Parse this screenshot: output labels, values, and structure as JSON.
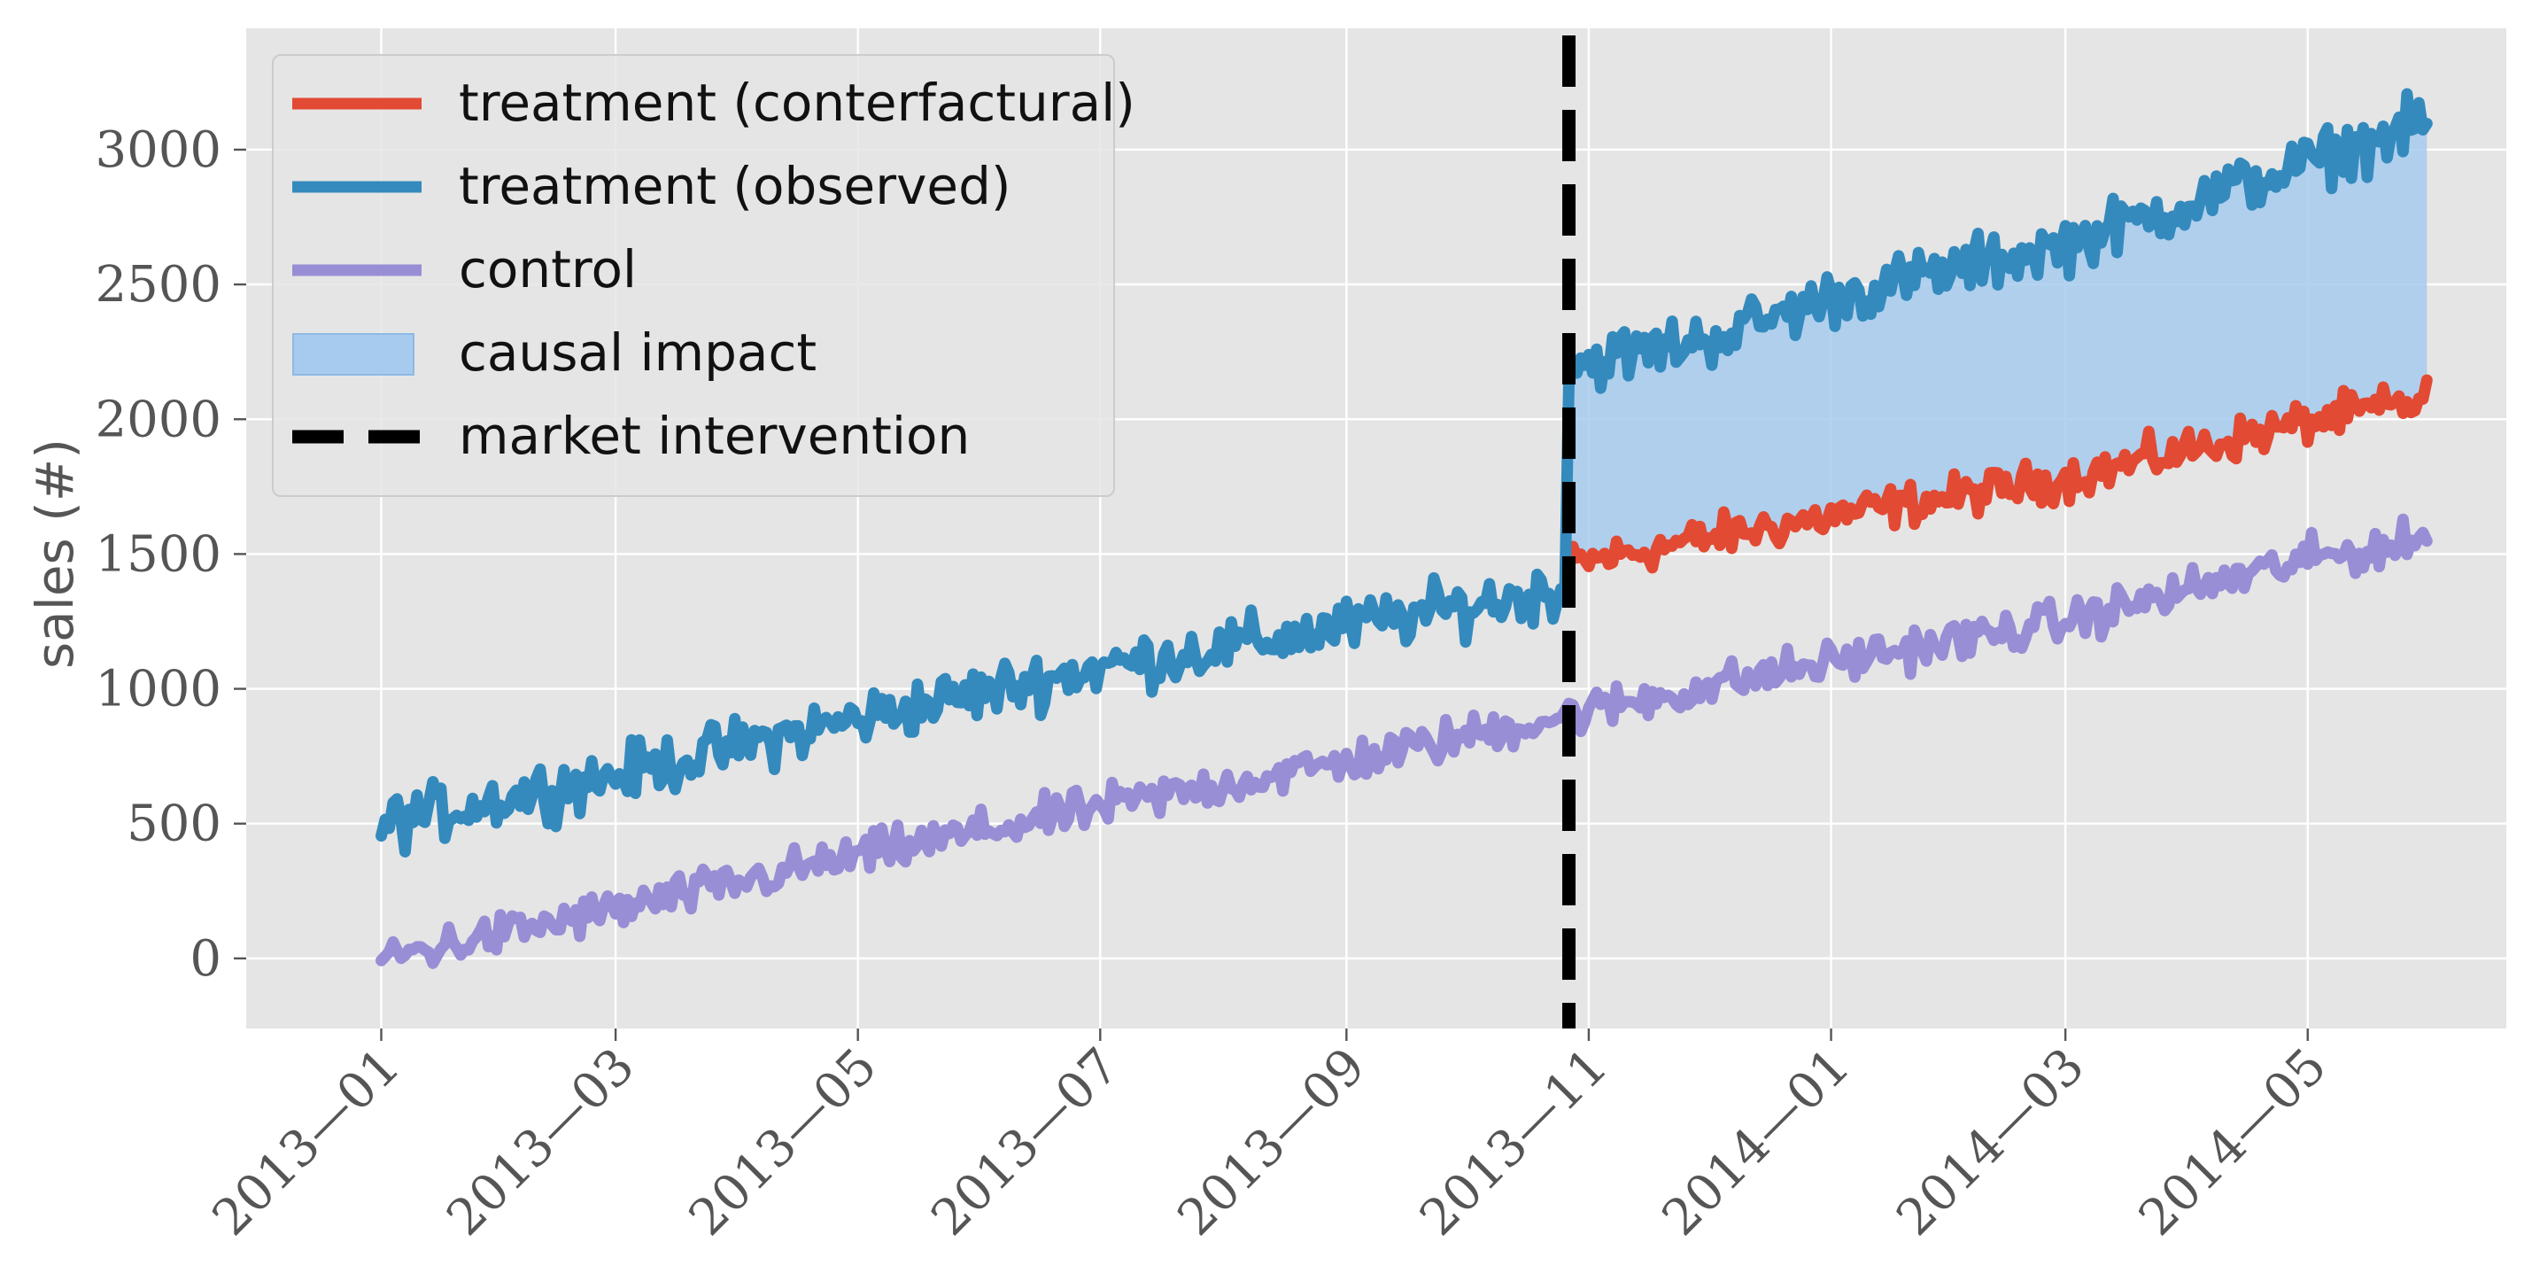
{
  "chart_data": {
    "type": "line",
    "title": "",
    "xlabel": "",
    "ylabel": "sales (#)",
    "x_range": [
      "2012-11-28",
      "2014-06-20"
    ],
    "ylim": [
      -260,
      3450
    ],
    "y_ticks": [
      0,
      500,
      1000,
      1500,
      2000,
      2500,
      3000
    ],
    "y_tick_labels": [
      "0",
      "500",
      "1000",
      "1500",
      "2000",
      "2500",
      "3000"
    ],
    "x_ticks": [
      "2013-01-01",
      "2013-03-01",
      "2013-05-01",
      "2013-07-01",
      "2013-09-01",
      "2013-11-01",
      "2014-01-01",
      "2014-03-01",
      "2014-05-01"
    ],
    "x_tick_labels": [
      "2013—01",
      "2013—03",
      "2013—05",
      "2013—07",
      "2013—09",
      "2013—11",
      "2014—01",
      "2014—03",
      "2014—05"
    ],
    "grid": true,
    "legend_position": "top-left",
    "series_start": "2013-01-01",
    "series_end": "2014-05-31",
    "intervention_date": "2013-10-27",
    "series": [
      {
        "name": "treatment (conterfactural)",
        "color": "#E24A33",
        "range": [
          "2013-10-27",
          "2014-05-31"
        ],
        "trend": [
          [
            "2013-10-27",
            1460
          ],
          [
            "2013-12-01",
            1560
          ],
          [
            "2014-01-01",
            1640
          ],
          [
            "2014-03-01",
            1780
          ],
          [
            "2014-05-01",
            1990
          ],
          [
            "2014-05-31",
            2070
          ]
        ]
      },
      {
        "name": "treatment (observed)",
        "color": "#348ABD",
        "range": [
          "2013-01-01",
          "2014-05-31"
        ],
        "trend": [
          [
            "2013-01-01",
            500
          ],
          [
            "2013-03-01",
            680
          ],
          [
            "2013-05-01",
            890
          ],
          [
            "2013-07-01",
            1080
          ],
          [
            "2013-09-01",
            1230
          ],
          [
            "2013-10-26",
            1370
          ],
          [
            "2013-10-27",
            2200
          ],
          [
            "2013-12-01",
            2300
          ],
          [
            "2014-01-01",
            2450
          ],
          [
            "2014-03-01",
            2650
          ],
          [
            "2014-05-01",
            2950
          ],
          [
            "2014-05-31",
            3100
          ]
        ]
      },
      {
        "name": "control",
        "color": "#988ED5",
        "range": [
          "2013-01-01",
          "2014-05-31"
        ],
        "trend": [
          [
            "2013-01-01",
            0
          ],
          [
            "2013-03-01",
            180
          ],
          [
            "2013-05-01",
            380
          ],
          [
            "2013-07-01",
            560
          ],
          [
            "2013-09-01",
            730
          ],
          [
            "2013-11-01",
            920
          ],
          [
            "2014-01-01",
            1100
          ],
          [
            "2014-03-01",
            1250
          ],
          [
            "2014-05-01",
            1480
          ],
          [
            "2014-05-31",
            1550
          ]
        ]
      }
    ],
    "shaded_region": {
      "name": "causal impact",
      "color": "#A6CBEE",
      "between": [
        "treatment (conterfactural)",
        "treatment (observed)"
      ],
      "range": [
        "2013-10-27",
        "2014-05-31"
      ]
    },
    "vertical_line": {
      "name": "market intervention",
      "date": "2013-10-27",
      "color": "#000000",
      "style": "dashed"
    }
  }
}
